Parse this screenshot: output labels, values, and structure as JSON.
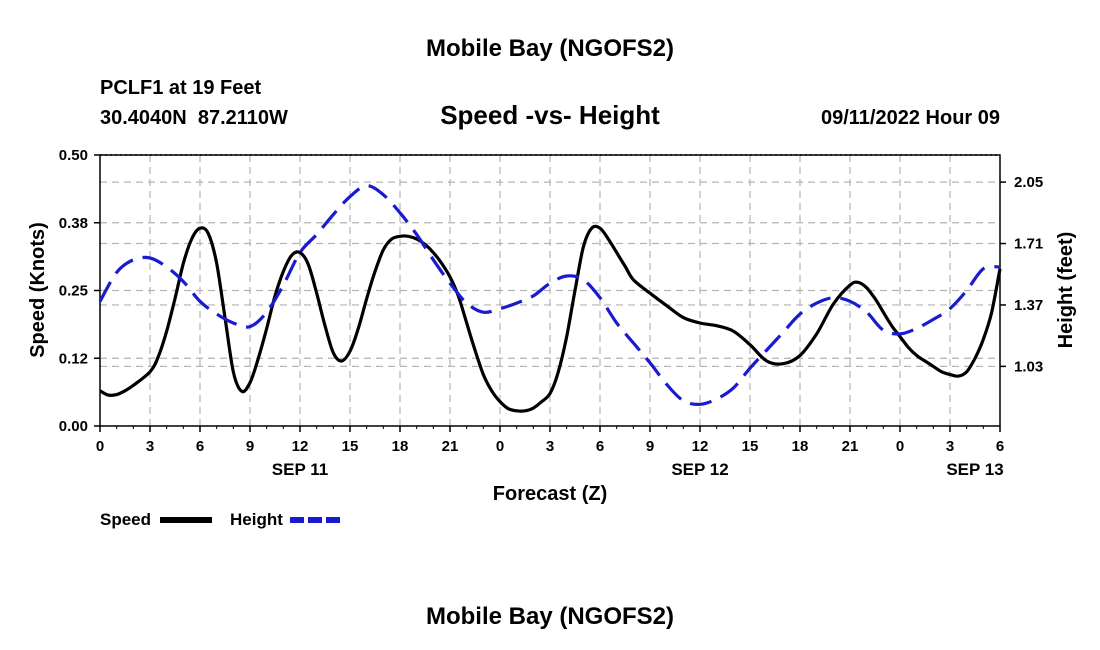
{
  "page": {
    "title": "Mobile Bay (NGOFS2)",
    "footer_title": "Mobile Bay (NGOFS2)",
    "station": "PCLF1 at 19 Feet",
    "coords": "30.4040N  87.2110W",
    "subtitle": "Speed -vs- Height",
    "timestamp": "09/11/2022 Hour 09"
  },
  "colors": {
    "speed": "#000000",
    "height": "#1a1ad0",
    "grid": "#b4b4b4"
  },
  "chart_data": {
    "type": "line",
    "title": "Speed -vs- Height",
    "xlabel": "Forecast (Z)",
    "ylabel": "Speed (Knots)",
    "y2label": "Height (feet)",
    "xlim": [
      0,
      54
    ],
    "ylim": [
      0,
      0.5
    ],
    "y2lim": [
      0.7,
      2.2
    ],
    "x_ticks": [
      0,
      3,
      6,
      9,
      12,
      15,
      18,
      21,
      24,
      27,
      30,
      33,
      36,
      39,
      42,
      45,
      48,
      51,
      54
    ],
    "x_tick_labels": [
      "0",
      "3",
      "6",
      "9",
      "12",
      "15",
      "18",
      "21",
      "0",
      "3",
      "6",
      "9",
      "12",
      "15",
      "18",
      "21",
      "0",
      "3",
      "6"
    ],
    "y_ticks": [
      0.0,
      0.125,
      0.25,
      0.375,
      0.5
    ],
    "y_tick_labels": [
      "0.00",
      "0.12",
      "0.25",
      "0.38",
      "0.50"
    ],
    "y2_ticks": [
      1.03,
      1.37,
      1.71,
      2.05
    ],
    "y2_tick_labels": [
      "1.03",
      "1.37",
      "1.71",
      "2.05"
    ],
    "date_labels": [
      {
        "x": 12,
        "label": "SEP 11"
      },
      {
        "x": 36,
        "label": "SEP 12"
      },
      {
        "x": 52.5,
        "label": "SEP 13"
      }
    ],
    "legend_position": "bottom-left",
    "series": [
      {
        "name": "Speed",
        "axis": "left",
        "style": "solid",
        "x": [
          0,
          0.5,
          1,
          1.5,
          2,
          3,
          3.5,
          4,
          4.5,
          5,
          5.5,
          6,
          6.5,
          7,
          7.5,
          8,
          8.5,
          9,
          9.5,
          10,
          10.5,
          11,
          11.5,
          12,
          12.5,
          13,
          13.5,
          14,
          14.5,
          15,
          15.5,
          16,
          16.5,
          17,
          17.5,
          18,
          18.5,
          19,
          19.5,
          20,
          20.5,
          21,
          21.5,
          22,
          22.5,
          23,
          23.5,
          24,
          24.5,
          25,
          25.5,
          26,
          26.5,
          27,
          27.5,
          28,
          28.5,
          29,
          29.5,
          30,
          30.5,
          31,
          31.5,
          32,
          33,
          34,
          35,
          36,
          37,
          38,
          39,
          40,
          41,
          42,
          43,
          44,
          45,
          45.5,
          46,
          46.5,
          47,
          47.5,
          48,
          48.5,
          49,
          49.5,
          50,
          50.5,
          51,
          51.5,
          52,
          52.5,
          53,
          53.5,
          54
        ],
        "values": [
          0.065,
          0.057,
          0.058,
          0.065,
          0.075,
          0.1,
          0.128,
          0.175,
          0.235,
          0.3,
          0.345,
          0.365,
          0.355,
          0.3,
          0.2,
          0.1,
          0.064,
          0.08,
          0.125,
          0.18,
          0.24,
          0.285,
          0.315,
          0.32,
          0.298,
          0.245,
          0.185,
          0.135,
          0.12,
          0.138,
          0.18,
          0.235,
          0.285,
          0.325,
          0.345,
          0.35,
          0.35,
          0.345,
          0.335,
          0.32,
          0.3,
          0.275,
          0.24,
          0.19,
          0.14,
          0.095,
          0.065,
          0.045,
          0.032,
          0.028,
          0.028,
          0.033,
          0.045,
          0.06,
          0.1,
          0.165,
          0.25,
          0.33,
          0.365,
          0.365,
          0.345,
          0.32,
          0.295,
          0.27,
          0.245,
          0.222,
          0.2,
          0.19,
          0.185,
          0.175,
          0.15,
          0.12,
          0.115,
          0.13,
          0.17,
          0.225,
          0.26,
          0.265,
          0.255,
          0.235,
          0.21,
          0.185,
          0.165,
          0.145,
          0.13,
          0.12,
          0.11,
          0.1,
          0.095,
          0.092,
          0.1,
          0.125,
          0.16,
          0.21,
          0.29
        ]
      },
      {
        "name": "Height",
        "axis": "right",
        "style": "dashed",
        "x": [
          0,
          1,
          2,
          3,
          4,
          5,
          6,
          7,
          8,
          9,
          10,
          11,
          12,
          13,
          14,
          15,
          16,
          17,
          18,
          19,
          20,
          21,
          22,
          23,
          24,
          25,
          26,
          27,
          28,
          29,
          30,
          31,
          32,
          33,
          34,
          35,
          36,
          37,
          38,
          39,
          40,
          41,
          42,
          43,
          44,
          45,
          46,
          47,
          48,
          49,
          50,
          51,
          52,
          53,
          54
        ],
        "values": [
          1.39,
          1.55,
          1.62,
          1.63,
          1.58,
          1.5,
          1.39,
          1.32,
          1.27,
          1.25,
          1.33,
          1.48,
          1.66,
          1.76,
          1.87,
          1.97,
          2.03,
          1.98,
          1.88,
          1.76,
          1.62,
          1.49,
          1.38,
          1.33,
          1.35,
          1.38,
          1.42,
          1.49,
          1.53,
          1.51,
          1.41,
          1.27,
          1.16,
          1.05,
          0.93,
          0.84,
          0.82,
          0.85,
          0.91,
          1.02,
          1.12,
          1.22,
          1.32,
          1.38,
          1.41,
          1.39,
          1.33,
          1.23,
          1.21,
          1.24,
          1.29,
          1.35,
          1.45,
          1.57,
          1.58
        ]
      }
    ]
  }
}
